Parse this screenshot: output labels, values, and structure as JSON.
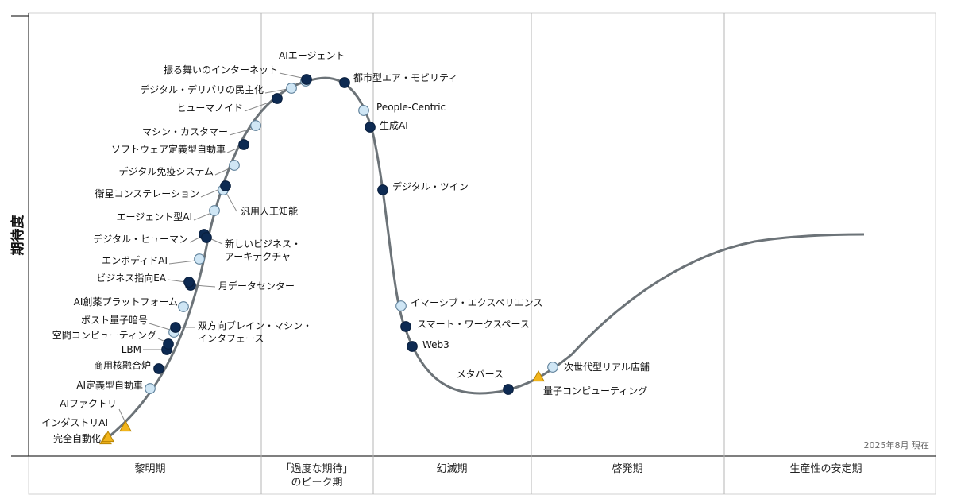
{
  "chart_data": {
    "type": "diagram",
    "title": "",
    "ylabel": "期待度",
    "as_of": "2025年8月 現在",
    "phases": [
      {
        "lines": [
          "黎明期"
        ]
      },
      {
        "lines": [
          "「過度な期待」",
          "のピーク期"
        ]
      },
      {
        "lines": [
          "幻滅期"
        ]
      },
      {
        "lines": [
          "啓発期"
        ]
      },
      {
        "lines": [
          "生産性の安定期"
        ]
      }
    ],
    "legend_markers": {
      "light_circle": "#cfe6f5",
      "dark_circle": "#0d2a52",
      "triangle": "#f2b51c"
    },
    "colors": {
      "curve": "#6c7378",
      "grid": "#b5b5b5",
      "leader": "#8a8a8a",
      "marker_stroke": "#5d7f99"
    },
    "technologies": [
      {
        "name": "完全自動化",
        "marker": "triangle"
      },
      {
        "name": "インダストリAI",
        "marker": "triangle"
      },
      {
        "name": "AIファクトリ",
        "marker": "triangle"
      },
      {
        "name": "AI定義型自動車",
        "marker": "light_circle"
      },
      {
        "name": "商用核融合炉",
        "marker": "dark_circle"
      },
      {
        "name": "LBM",
        "marker": "dark_circle"
      },
      {
        "name": "空間コンピューティング",
        "marker": "dark_circle"
      },
      {
        "name": "ポスト量子暗号",
        "marker": "light_circle"
      },
      {
        "name": "双方向ブレイン・マシン・\nインタフェース",
        "marker": "dark_circle"
      },
      {
        "name": "AI創薬プラットフォーム",
        "marker": "light_circle"
      },
      {
        "name": "月データセンター",
        "marker": "dark_circle"
      },
      {
        "name": "ビジネス指向EA",
        "marker": "dark_circle"
      },
      {
        "name": "エンボディドAI",
        "marker": "light_circle"
      },
      {
        "name": "デジタル・ヒューマン",
        "marker": "dark_circle"
      },
      {
        "name": "新しいビジネス・\nアーキテクチャ",
        "marker": "dark_circle"
      },
      {
        "name": "エージェント型AI",
        "marker": "light_circle"
      },
      {
        "name": "汎用人工知能",
        "marker": "light_circle"
      },
      {
        "name": "衛星コンステレーション",
        "marker": "dark_circle"
      },
      {
        "name": "デジタル免疫システム",
        "marker": "light_circle"
      },
      {
        "name": "ソフトウェア定義型自動車",
        "marker": "dark_circle"
      },
      {
        "name": "マシン・カスタマー",
        "marker": "light_circle"
      },
      {
        "name": "ヒューマノイド",
        "marker": "dark_circle"
      },
      {
        "name": "デジタル・デリバリの民主化",
        "marker": "light_circle"
      },
      {
        "name": "振る舞いのインターネット",
        "marker": "light_circle"
      },
      {
        "name": "AIエージェント",
        "marker": "dark_circle"
      },
      {
        "name": "都市型エア・モビリティ",
        "marker": "dark_circle"
      },
      {
        "name": "People-Centric",
        "marker": "light_circle"
      },
      {
        "name": "生成AI",
        "marker": "dark_circle"
      },
      {
        "name": "デジタル・ツイン",
        "marker": "dark_circle"
      },
      {
        "name": "イマーシブ・エクスペリエンス",
        "marker": "light_circle"
      },
      {
        "name": "スマート・ワークスペース",
        "marker": "dark_circle"
      },
      {
        "name": "Web3",
        "marker": "dark_circle"
      },
      {
        "name": "メタバース",
        "marker": "dark_circle"
      },
      {
        "name": "量子コンピューティング",
        "marker": "triangle"
      },
      {
        "name": "次世代型リアル店舗",
        "marker": "light_circle"
      }
    ]
  }
}
